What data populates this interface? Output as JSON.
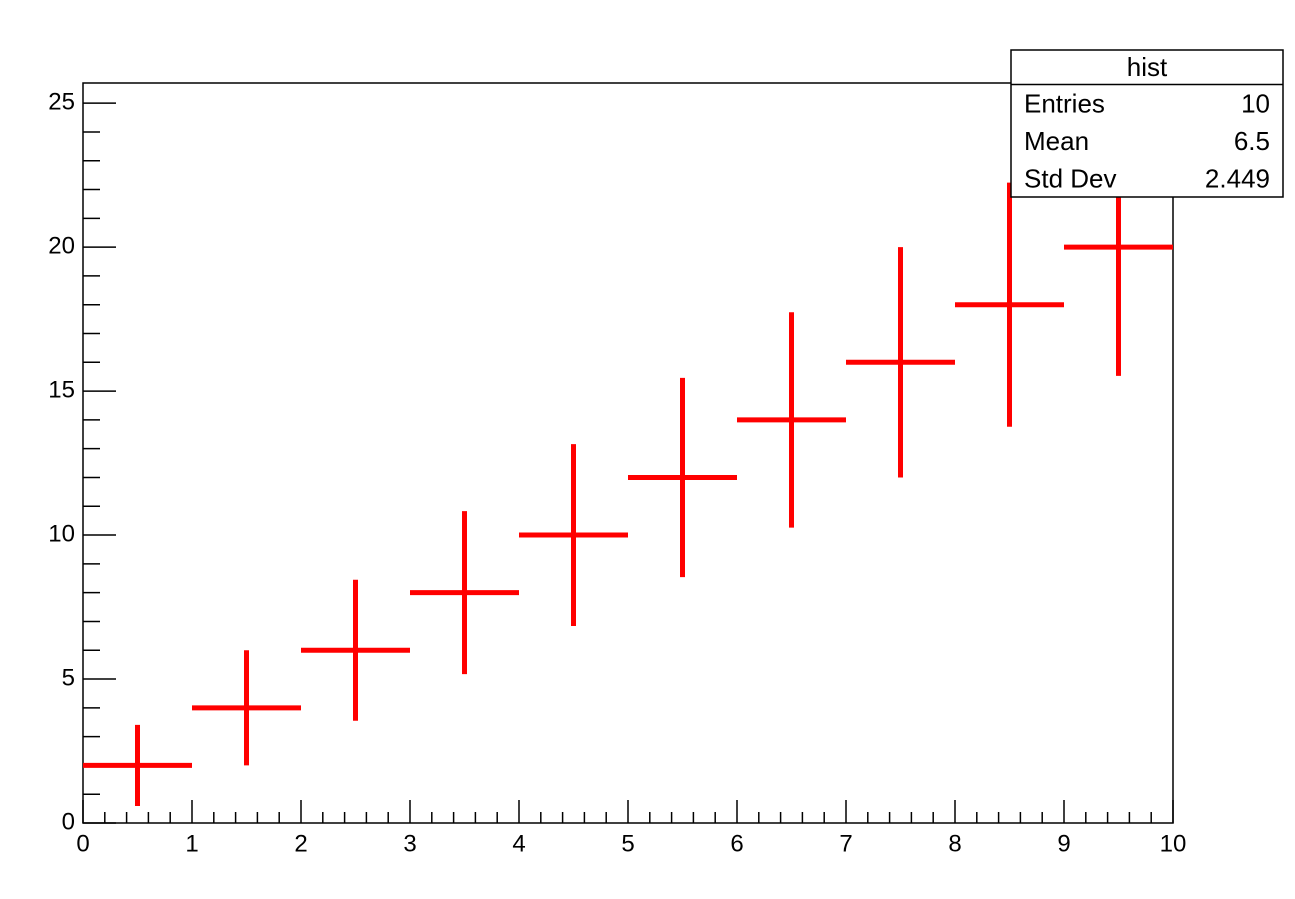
{
  "chart_data": {
    "type": "histogram",
    "bins": [
      0,
      1,
      2,
      3,
      4,
      5,
      6,
      7,
      8,
      9,
      10
    ],
    "values": [
      2,
      4,
      6,
      8,
      10,
      12,
      14,
      16,
      18,
      20
    ],
    "errors": [
      1.41,
      2,
      2.45,
      2.83,
      3.16,
      3.46,
      3.74,
      4,
      4.24,
      4.47
    ],
    "color": "#ff0000",
    "xlim": [
      0,
      10
    ],
    "ylim": [
      0,
      25.7
    ],
    "xticks": [
      0,
      1,
      2,
      3,
      4,
      5,
      6,
      7,
      8,
      9,
      10
    ],
    "yticks": [
      0,
      5,
      10,
      15,
      20,
      25
    ],
    "xminorticks": [
      0.2,
      0.4,
      0.6,
      0.8,
      1.2,
      1.4,
      1.6,
      1.8,
      2.2,
      2.4,
      2.6,
      2.8,
      3.2,
      3.4,
      3.6,
      3.8,
      4.2,
      4.4,
      4.6,
      4.8,
      5.2,
      5.4,
      5.6,
      5.8,
      6.2,
      6.4,
      6.6,
      6.8,
      7.2,
      7.4,
      7.6,
      7.8,
      8.2,
      8.4,
      8.6,
      8.8,
      9.2,
      9.4,
      9.6,
      9.8
    ],
    "yminorticks": [
      1,
      2,
      3,
      4,
      6,
      7,
      8,
      9,
      11,
      12,
      13,
      14,
      16,
      17,
      18,
      19,
      21,
      22,
      23,
      24
    ],
    "stats": {
      "title": "hist",
      "rows": [
        [
          "Entries",
          10
        ],
        [
          "Mean",
          6.5
        ],
        [
          "Std Dev",
          2.449
        ]
      ]
    }
  }
}
